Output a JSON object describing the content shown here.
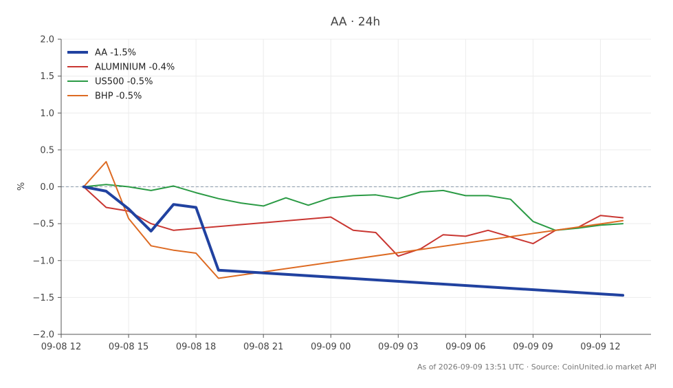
{
  "chart_data": {
    "type": "line",
    "title": "AA · 24h",
    "ylabel": "%",
    "xlabel": "",
    "ylim": [
      -2.0,
      2.0
    ],
    "yticks": [
      -2.0,
      -1.5,
      -1.0,
      -0.5,
      0.0,
      0.5,
      1.0,
      1.5,
      2.0
    ],
    "ytick_labels": [
      "−2.0",
      "−1.5",
      "−1.0",
      "−0.5",
      "0.0",
      "0.5",
      "1.0",
      "1.5",
      "2.0"
    ],
    "xlim": [
      "2026-09-08 12:00",
      "2026-09-09 14:15"
    ],
    "xticks": [
      "2026-09-08 12:00",
      "2026-09-08 15:00",
      "2026-09-08 18:00",
      "2026-09-08 21:00",
      "2026-09-09 00:00",
      "2026-09-09 03:00",
      "2026-09-09 06:00",
      "2026-09-09 09:00",
      "2026-09-09 12:00"
    ],
    "xtick_labels": [
      "09-08 12",
      "09-08 15",
      "09-08 18",
      "09-08 21",
      "09-09 00",
      "09-09 03",
      "09-09 06",
      "09-09 09",
      "09-09 12"
    ],
    "grid": true,
    "zero_line": true,
    "legend_position": "top-left",
    "series": [
      {
        "name": "AA -1.5%",
        "color": "#2142a0",
        "x": [
          "2026-09-08 13:00",
          "2026-09-08 14:00",
          "2026-09-08 15:00",
          "2026-09-08 16:00",
          "2026-09-08 17:00",
          "2026-09-08 18:00",
          "2026-09-08 19:00",
          "2026-09-09 13:00"
        ],
        "values": [
          0.0,
          -0.06,
          -0.3,
          -0.6,
          -0.24,
          -0.28,
          -1.13,
          -1.47
        ]
      },
      {
        "name": "ALUMINIUM -0.4%",
        "color": "#c93631",
        "x": [
          "2026-09-08 13:00",
          "2026-09-08 14:00",
          "2026-09-08 15:00",
          "2026-09-08 16:00",
          "2026-09-08 17:00",
          "2026-09-09 00:00",
          "2026-09-09 01:00",
          "2026-09-09 02:00",
          "2026-09-09 03:00",
          "2026-09-09 04:00",
          "2026-09-09 05:00",
          "2026-09-09 06:00",
          "2026-09-09 07:00",
          "2026-09-09 08:00",
          "2026-09-09 09:00",
          "2026-09-09 10:00",
          "2026-09-09 11:00",
          "2026-09-09 12:00",
          "2026-09-09 13:00"
        ],
        "values": [
          0.0,
          -0.28,
          -0.33,
          -0.5,
          -0.59,
          -0.41,
          -0.59,
          -0.62,
          -0.94,
          -0.84,
          -0.65,
          -0.67,
          -0.59,
          -0.68,
          -0.77,
          -0.59,
          -0.55,
          -0.39,
          -0.42
        ]
      },
      {
        "name": "US500 -0.5%",
        "color": "#2a9a44",
        "x": [
          "2026-09-08 13:00",
          "2026-09-08 14:00",
          "2026-09-08 15:00",
          "2026-09-08 16:00",
          "2026-09-08 17:00",
          "2026-09-08 18:00",
          "2026-09-08 19:00",
          "2026-09-08 20:00",
          "2026-09-08 21:00",
          "2026-09-08 22:00",
          "2026-09-08 23:00",
          "2026-09-09 00:00",
          "2026-09-09 01:00",
          "2026-09-09 02:00",
          "2026-09-09 03:00",
          "2026-09-09 04:00",
          "2026-09-09 05:00",
          "2026-09-09 06:00",
          "2026-09-09 07:00",
          "2026-09-09 08:00",
          "2026-09-09 09:00",
          "2026-09-09 10:00",
          "2026-09-09 11:00",
          "2026-09-09 12:00",
          "2026-09-09 13:00"
        ],
        "values": [
          0.0,
          0.03,
          0.0,
          -0.05,
          0.01,
          -0.08,
          -0.16,
          -0.22,
          -0.26,
          -0.15,
          -0.25,
          -0.15,
          -0.12,
          -0.11,
          -0.16,
          -0.07,
          -0.05,
          -0.12,
          -0.12,
          -0.17,
          -0.47,
          -0.59,
          -0.56,
          -0.52,
          -0.5
        ]
      },
      {
        "name": "BHP -0.5%",
        "color": "#dd6a22",
        "x": [
          "2026-09-08 13:00",
          "2026-09-08 14:00",
          "2026-09-08 15:00",
          "2026-09-08 16:00",
          "2026-09-08 17:00",
          "2026-09-08 18:00",
          "2026-09-08 19:00",
          "2026-09-09 13:00"
        ],
        "values": [
          0.0,
          0.34,
          -0.43,
          -0.8,
          -0.86,
          -0.9,
          -1.24,
          -0.46
        ]
      }
    ]
  },
  "footer": {
    "note": "As of 2026-09-09 13:51 UTC · Source: CoinUnited.io market API"
  }
}
